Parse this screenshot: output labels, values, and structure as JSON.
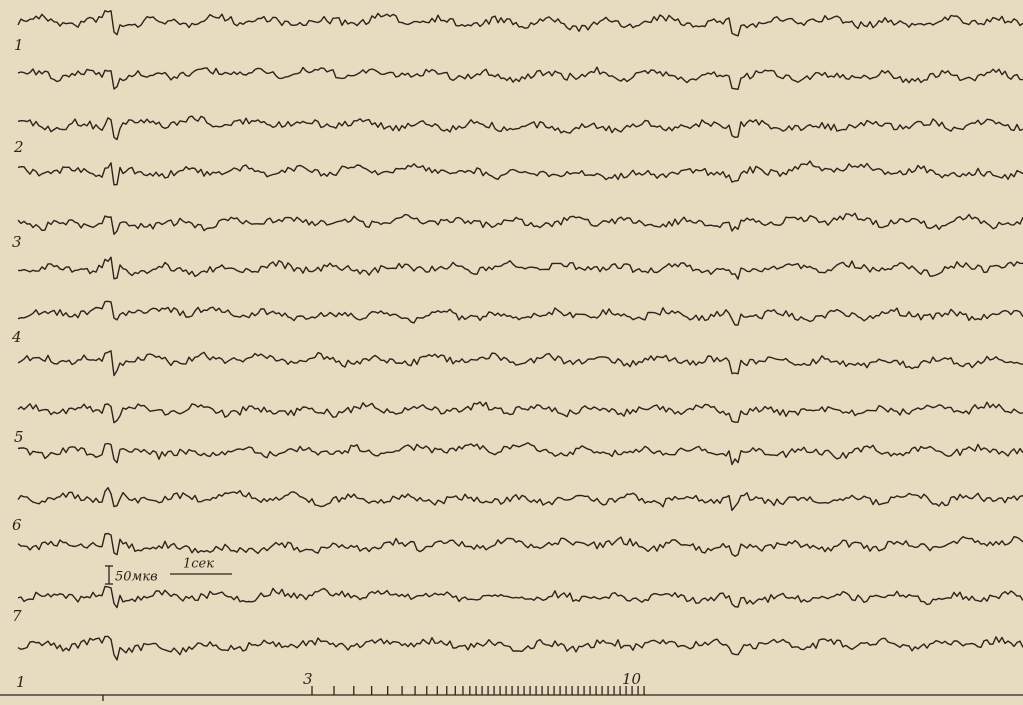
{
  "channel_labels": [
    "1",
    "2",
    "3",
    "4",
    "5",
    "6",
    "7"
  ],
  "calibration": {
    "amplitude": "50мкв",
    "time": "1сек"
  },
  "stimulus_marks": [
    "1",
    "3",
    "10"
  ]
}
